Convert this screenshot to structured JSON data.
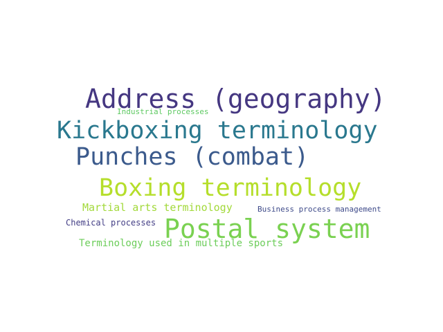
{
  "words": [
    {
      "key": "address",
      "text": "Address (geography)",
      "color": "#453781"
    },
    {
      "key": "industrial",
      "text": "Industrial processes",
      "color": "#5ec962"
    },
    {
      "key": "kickbox",
      "text": "Kickboxing terminology",
      "color": "#2a788e"
    },
    {
      "key": "punches",
      "text": "Punches (combat)",
      "color": "#3b5a8c"
    },
    {
      "key": "boxing",
      "text": "Boxing terminology",
      "color": "#b5de2b"
    },
    {
      "key": "martial",
      "text": "Martial arts terminology",
      "color": "#a2d93a"
    },
    {
      "key": "business",
      "text": "Business process management",
      "color": "#3e4a89"
    },
    {
      "key": "chemical",
      "text": "Chemical processes",
      "color": "#433e85"
    },
    {
      "key": "postal",
      "text": "Postal system",
      "color": "#7ad151"
    },
    {
      "key": "sports",
      "text": "Terminology used in multiple sports",
      "color": "#6ccd5a"
    }
  ]
}
